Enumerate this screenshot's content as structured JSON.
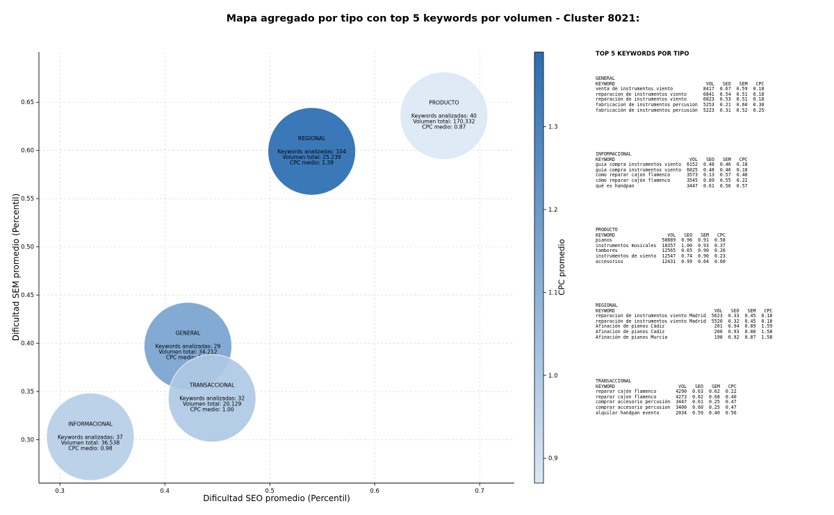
{
  "chart_data": {
    "type": "scatter",
    "title": "Mapa agregado por tipo con top 5 keywords por volumen - Cluster 8021:",
    "xlabel": "Dificultad SEO promedio (Percentil)",
    "ylabel": "Dificultad SEM promedio (Percentil)",
    "colorbar_label": "CPC promedio",
    "xlim": [
      0.28,
      0.733
    ],
    "ylim": [
      0.255,
      0.702
    ],
    "xticks": [
      0.3,
      0.4,
      0.5,
      0.6,
      0.7
    ],
    "yticks": [
      0.3,
      0.35,
      0.4,
      0.45,
      0.5,
      0.55,
      0.6,
      0.65
    ],
    "colorbar_ticks": [
      0.9,
      1.0,
      1.1,
      1.2,
      1.3
    ],
    "colorbar_range": [
      0.87,
      1.39
    ],
    "grid": true,
    "colormap": [
      "#dbe8f5",
      "#2a6db1"
    ],
    "points": [
      {
        "label": "PRODUCTO",
        "x": 0.666,
        "y": 0.636,
        "keywords": "Keywords analizadas: 40",
        "volume": "Volumen total: 170.332",
        "cpc_text": "CPC medio: 0.87",
        "cpc": 0.87
      },
      {
        "label": "REGIONAL",
        "x": 0.54,
        "y": 0.599,
        "keywords": "Keywords analizadas: 104",
        "volume": "Volumen total: 25.239",
        "cpc_text": "CPC medio: 1.39",
        "cpc": 1.39
      },
      {
        "label": "GENERAL",
        "x": 0.422,
        "y": 0.397,
        "keywords": "Keywords analizadas: 29",
        "volume": "Volumen total: 34.212",
        "cpc_text": "CPC medio: 1.16",
        "cpc": 1.16
      },
      {
        "label": "TRANSACCIONAL",
        "x": 0.445,
        "y": 0.343,
        "keywords": "Keywords analizadas: 32",
        "volume": "Volumen total: 20.129",
        "cpc_text": "CPC medio: 1.00",
        "cpc": 1.0
      },
      {
        "label": "INFORMACIONAL",
        "x": 0.329,
        "y": 0.303,
        "keywords": "Keywords analizadas: 37",
        "volume": "Volumen total: 36.538",
        "cpc_text": "CPC medio: 0.98",
        "cpc": 0.98
      }
    ]
  },
  "side_panel": {
    "title": "TOP 5 KEYWORDS POR TIPO",
    "columns": [
      "KEYWORD",
      "VOL",
      "SEO",
      "SEM",
      "CPC"
    ],
    "categories": [
      {
        "name": "GENERAL",
        "rows": [
          [
            "venta de instrumentos viento",
            "8417",
            "0.67",
            "0.59",
            "0.18"
          ],
          [
            "reparacion de instrumentos viento",
            "6841",
            "0.54",
            "0.51",
            "0.18"
          ],
          [
            "reparación de instrumentos viento",
            "6823",
            "0.53",
            "0.51",
            "0.18"
          ],
          [
            "fabricacion de instrumentos percusion",
            "5253",
            "0.21",
            "0.60",
            "0.30"
          ],
          [
            "fabricación de instrumentos percusión",
            "5223",
            "0.31",
            "0.52",
            "0.25"
          ]
        ]
      },
      {
        "name": "INFORMACIONAL",
        "rows": [
          [
            "guia compra instrumentos viento",
            "6152",
            "0.48",
            "0.46",
            "0.18"
          ],
          [
            "guía compra instrumentos viento",
            "6025",
            "0.48",
            "0.46",
            "0.18"
          ],
          [
            "como reparar cajon flamenco",
            "3573",
            "0.13",
            "0.57",
            "0.40"
          ],
          [
            "cómo reparar cajón flamenco",
            "3545",
            "0.89",
            "0.55",
            "0.22"
          ],
          [
            "qué es handpan",
            "3447",
            "0.61",
            "0.56",
            "0.57"
          ]
        ]
      },
      {
        "name": "PRODUCTO",
        "rows": [
          [
            "pianos",
            "50889",
            "0.96",
            "0.91",
            "0.58"
          ],
          [
            "instrumentos musicales",
            "18357",
            "1.00",
            "0.93",
            "0.37"
          ],
          [
            "tambores",
            "12565",
            "0.65",
            "0.90",
            "0.26"
          ],
          [
            "instrumentos de viento",
            "12547",
            "0.74",
            "0.90",
            "0.23"
          ],
          [
            "accesorios",
            "12431",
            "0.99",
            "0.64",
            "0.60"
          ]
        ]
      },
      {
        "name": "REGIONAL",
        "rows": [
          [
            "reparacion de instrumentos viento Madrid",
            "5623",
            "0.33",
            "0.45",
            "0.18"
          ],
          [
            "reparación de instrumentos viento Madrid",
            "5520",
            "0.32",
            "0.45",
            "0.18"
          ],
          [
            "Afinación de pianos Cádiz",
            "201",
            "0.94",
            "0.89",
            "1.59"
          ],
          [
            "Afinacion de pianos Cadiz",
            "200",
            "0.93",
            "0.88",
            "1.58"
          ],
          [
            "Afinación de pianos Murcia",
            "198",
            "0.92",
            "0.87",
            "1.58"
          ]
        ]
      },
      {
        "name": "TRANSACCIONAL",
        "rows": [
          [
            "reparar cajón flamenco",
            "4290",
            "0.63",
            "0.62",
            "0.22"
          ],
          [
            "reparar cajon flamenco",
            "4273",
            "0.62",
            "0.68",
            "0.40"
          ],
          [
            "comprar accesorio percusión",
            "3447",
            "0.61",
            "0.25",
            "0.47"
          ],
          [
            "comprar accesorio percusion",
            "3400",
            "0.60",
            "0.25",
            "0.47"
          ],
          [
            "alquilar handpan evento",
            "2034",
            "0.59",
            "0.40",
            "0.56"
          ]
        ]
      }
    ]
  }
}
